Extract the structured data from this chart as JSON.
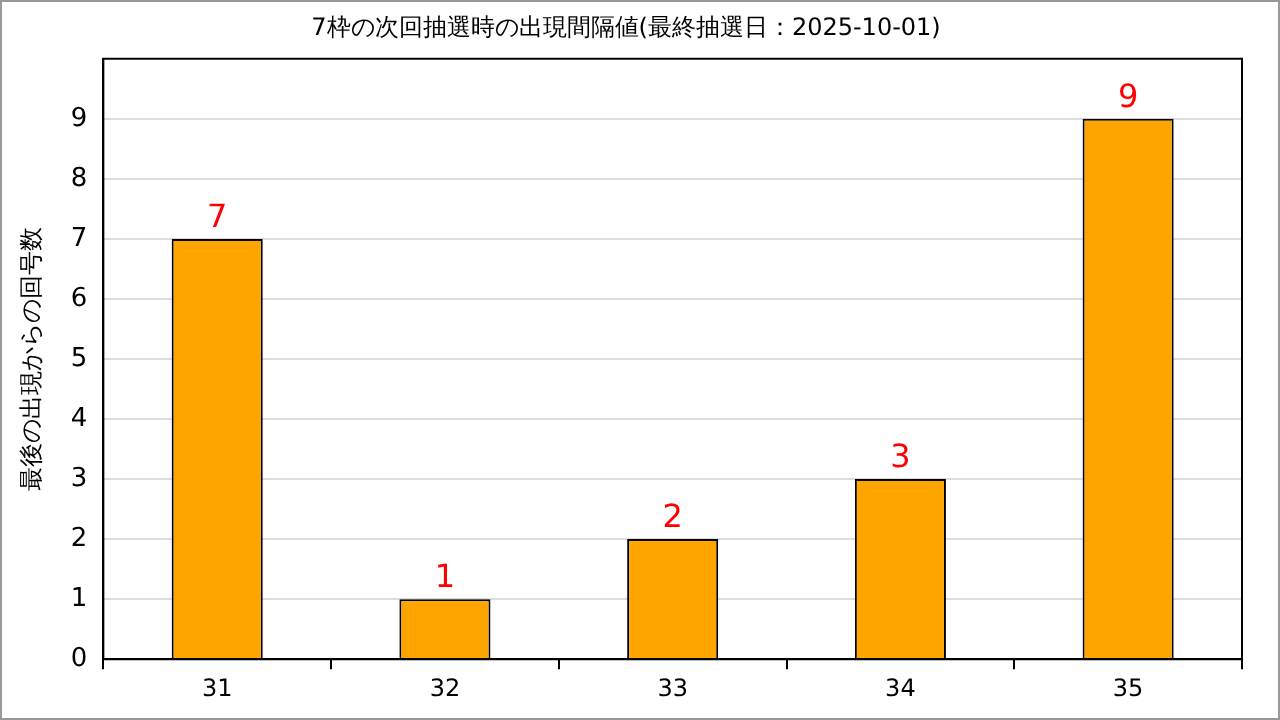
{
  "chart_data": {
    "type": "bar",
    "title": "7枠の次回抽選時の出現間隔値(最終抽選日：2025-10-01)",
    "ylabel": "最後の出現からの回号数",
    "categories": [
      "31",
      "32",
      "33",
      "34",
      "35"
    ],
    "series": [
      {
        "color": "#ffa500",
        "values": [
          7,
          1,
          2,
          3,
          9
        ]
      }
    ],
    "ylim": [
      0,
      10
    ],
    "yticks": [
      0,
      1,
      2,
      3,
      4,
      5,
      6,
      7,
      8,
      9
    ],
    "grid": "y",
    "legend": false,
    "data_labels": true
  }
}
